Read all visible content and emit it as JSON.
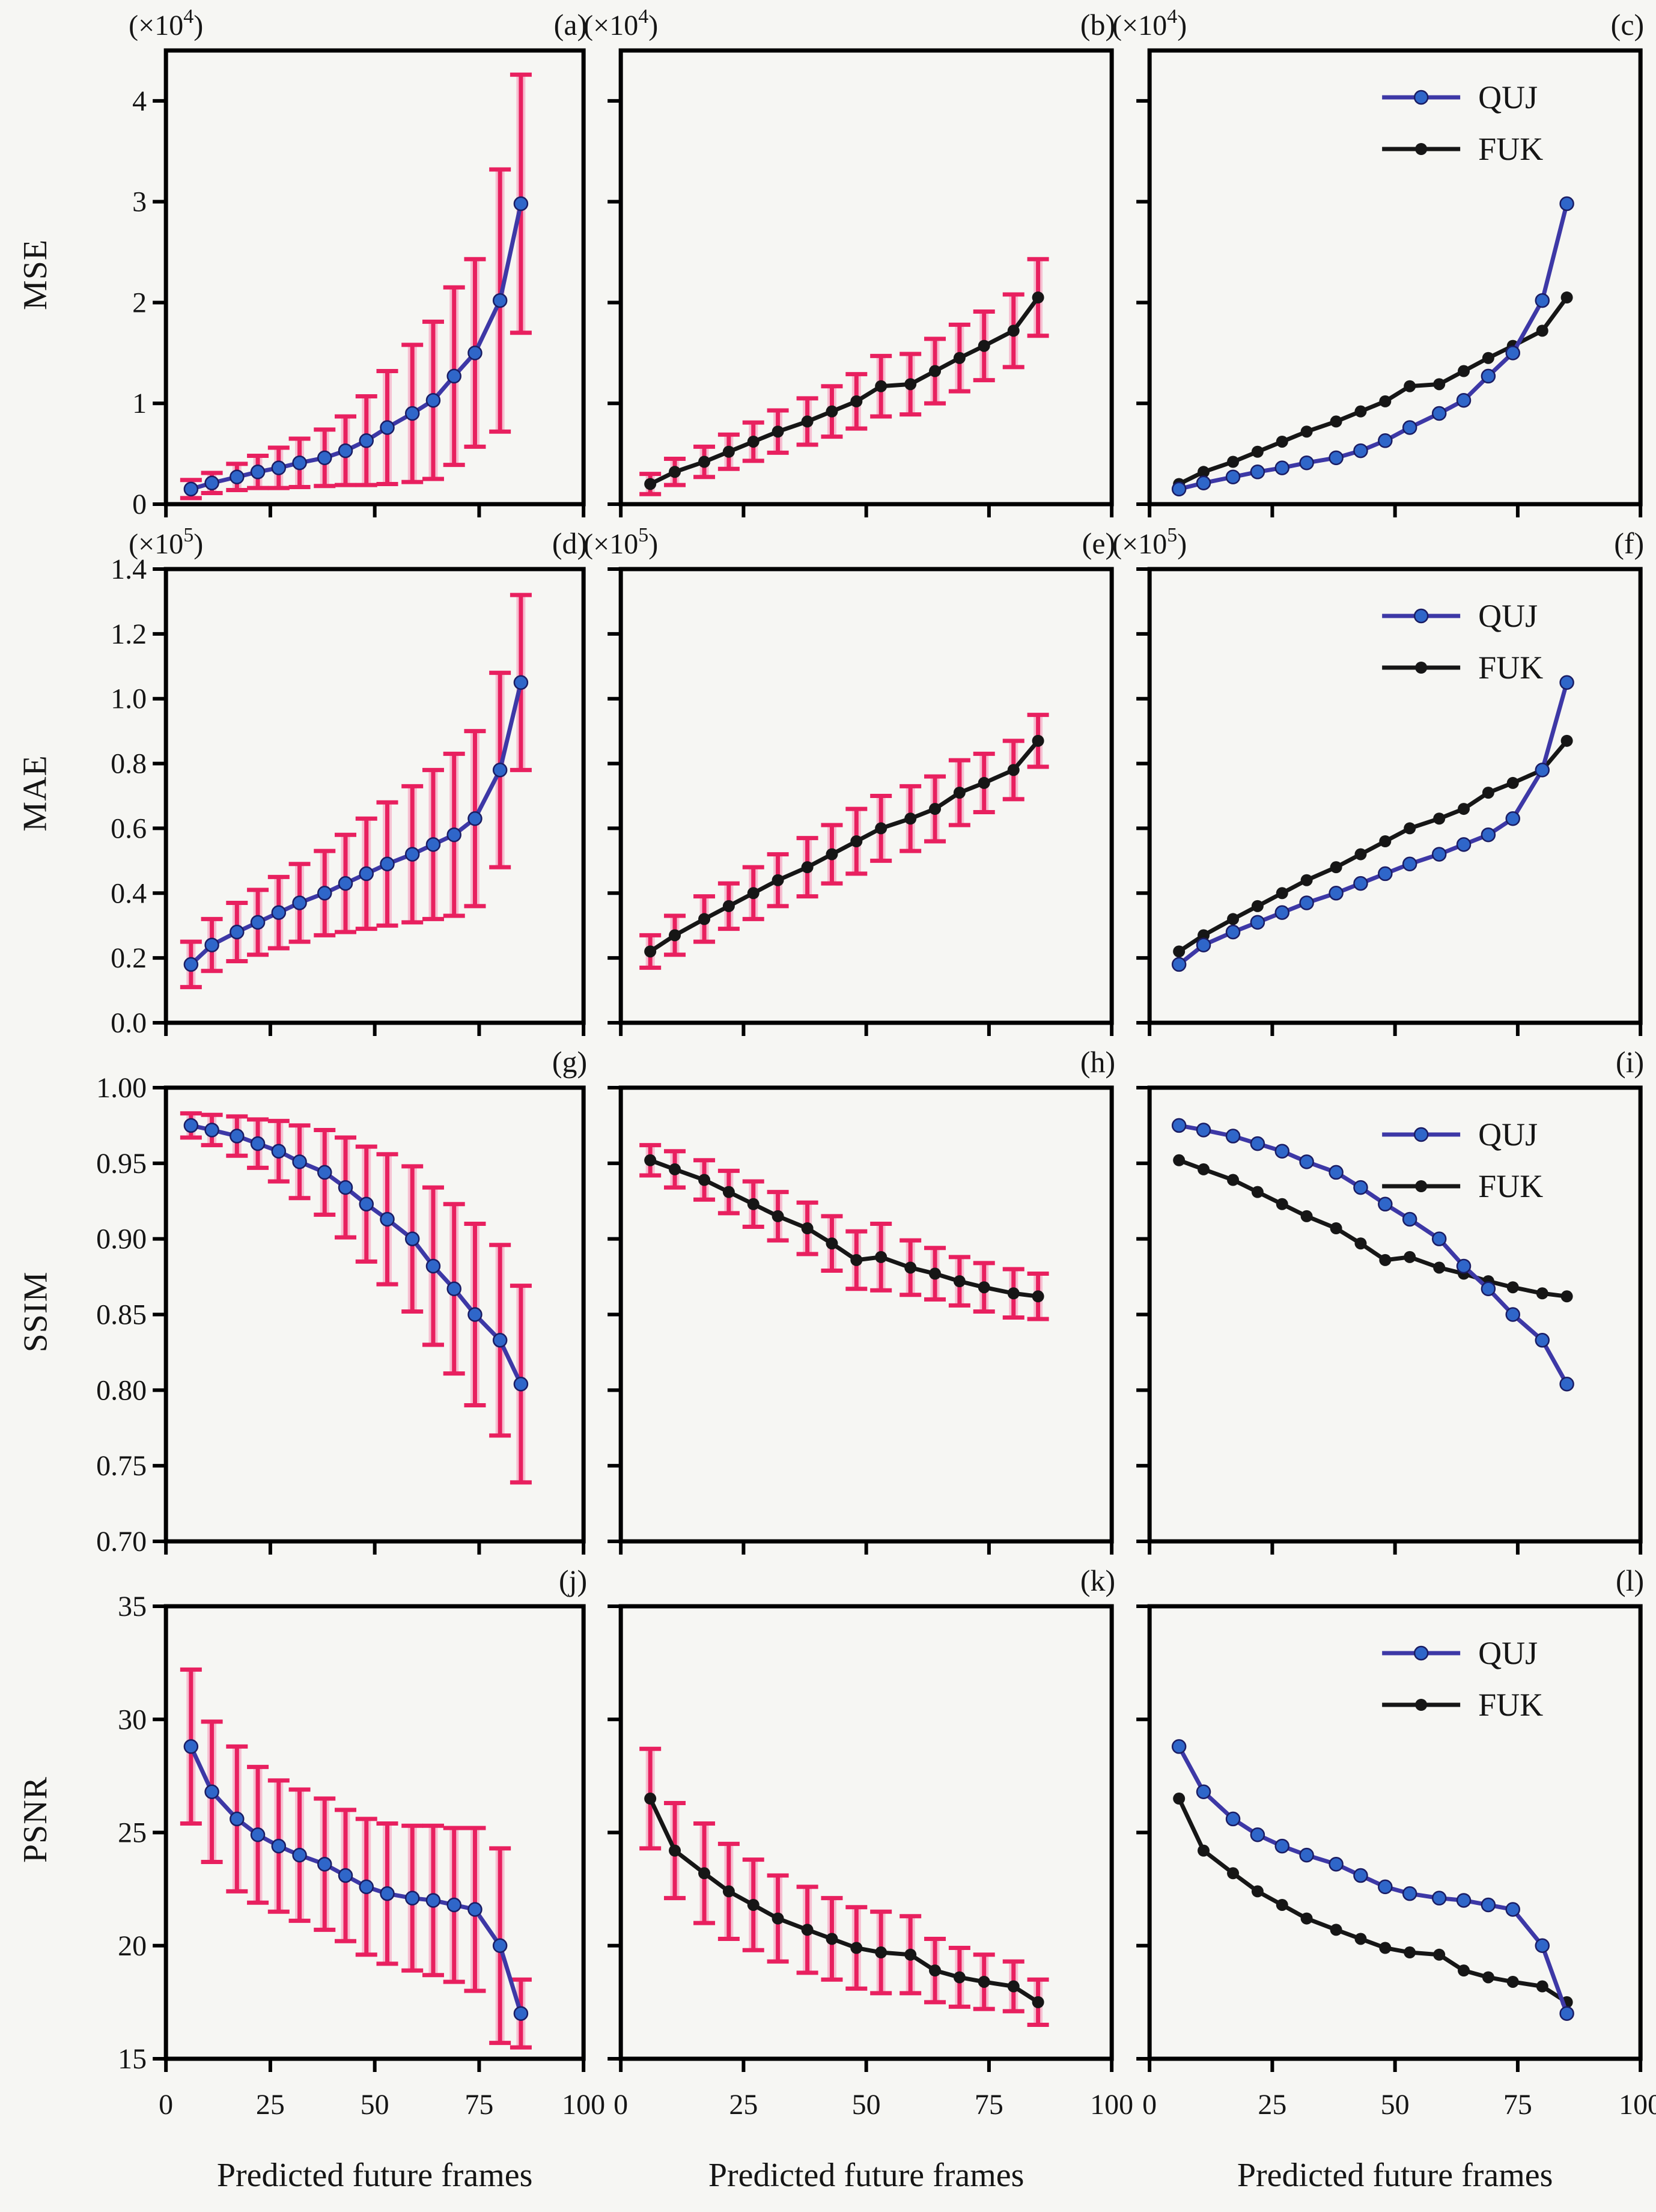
{
  "y_axis_titles": [
    "MSE",
    "MAE",
    "SSIM",
    "PSNR"
  ],
  "x_axis_title": "Predicted future frames",
  "legend_entries": [
    "QUJ",
    "FUK"
  ],
  "colors": {
    "page_background": "#f6f6f3",
    "frame": "#000000",
    "text": "#151515",
    "quj_line": "#3d38a6",
    "quj_fill": "#2f66c9",
    "fuk_line": "#161616",
    "fuk_fill": "#161616",
    "error": "#e8205f",
    "error_halo": "#f7b2c9"
  },
  "chart_data": {
    "type": "line",
    "x": [
      6,
      11,
      17,
      22,
      27,
      32,
      38,
      43,
      48,
      53,
      59,
      64,
      69,
      74,
      80,
      85
    ],
    "xlim": [
      0,
      100
    ],
    "xticks": [
      0,
      25,
      50,
      75,
      100
    ],
    "x_axis_title": "Predicted future frames",
    "grid": false,
    "legend_position": "top-right",
    "series_bank": {
      "mse_quj": {
        "name": "QUJ",
        "color": "quj",
        "values": [
          0.15,
          0.21,
          0.27,
          0.32,
          0.36,
          0.41,
          0.46,
          0.53,
          0.63,
          0.76,
          0.9,
          1.03,
          1.27,
          1.5,
          2.02,
          2.98
        ],
        "errors": [
          0.09,
          0.1,
          0.13,
          0.16,
          0.2,
          0.24,
          0.28,
          0.34,
          0.44,
          0.56,
          0.68,
          0.78,
          0.88,
          0.93,
          1.3,
          1.28
        ]
      },
      "mse_fuk": {
        "name": "FUK",
        "color": "fuk",
        "values": [
          0.2,
          0.32,
          0.42,
          0.52,
          0.62,
          0.72,
          0.82,
          0.92,
          1.02,
          1.17,
          1.19,
          1.32,
          1.45,
          1.57,
          1.72,
          2.05
        ],
        "errors": [
          0.1,
          0.13,
          0.15,
          0.17,
          0.19,
          0.21,
          0.23,
          0.25,
          0.27,
          0.3,
          0.3,
          0.32,
          0.33,
          0.34,
          0.36,
          0.38
        ]
      },
      "mae_quj": {
        "name": "QUJ",
        "color": "quj",
        "values": [
          0.18,
          0.24,
          0.28,
          0.31,
          0.34,
          0.37,
          0.4,
          0.43,
          0.46,
          0.49,
          0.52,
          0.55,
          0.58,
          0.63,
          0.78,
          1.05
        ],
        "errors": [
          0.07,
          0.08,
          0.09,
          0.1,
          0.11,
          0.12,
          0.13,
          0.15,
          0.17,
          0.19,
          0.21,
          0.23,
          0.25,
          0.27,
          0.3,
          0.27
        ]
      },
      "mae_fuk": {
        "name": "FUK",
        "color": "fuk",
        "values": [
          0.22,
          0.27,
          0.32,
          0.36,
          0.4,
          0.44,
          0.48,
          0.52,
          0.56,
          0.6,
          0.63,
          0.66,
          0.71,
          0.74,
          0.78,
          0.87
        ],
        "errors": [
          0.05,
          0.06,
          0.07,
          0.07,
          0.08,
          0.08,
          0.09,
          0.09,
          0.1,
          0.1,
          0.1,
          0.1,
          0.1,
          0.09,
          0.09,
          0.08
        ]
      },
      "ssim_quj": {
        "name": "QUJ",
        "color": "quj",
        "values": [
          0.975,
          0.972,
          0.968,
          0.963,
          0.958,
          0.951,
          0.944,
          0.934,
          0.923,
          0.913,
          0.9,
          0.882,
          0.867,
          0.85,
          0.833,
          0.804
        ],
        "errors": [
          0.008,
          0.01,
          0.013,
          0.016,
          0.02,
          0.024,
          0.028,
          0.033,
          0.038,
          0.043,
          0.048,
          0.052,
          0.056,
          0.06,
          0.063,
          0.065
        ]
      },
      "ssim_fuk": {
        "name": "FUK",
        "color": "fuk",
        "values": [
          0.952,
          0.946,
          0.939,
          0.931,
          0.923,
          0.915,
          0.907,
          0.897,
          0.886,
          0.888,
          0.881,
          0.877,
          0.872,
          0.868,
          0.864,
          0.862
        ],
        "errors": [
          0.01,
          0.012,
          0.013,
          0.014,
          0.015,
          0.016,
          0.017,
          0.018,
          0.019,
          0.022,
          0.018,
          0.017,
          0.016,
          0.016,
          0.016,
          0.015
        ]
      },
      "psnr_quj": {
        "name": "QUJ",
        "color": "quj",
        "values": [
          28.8,
          26.8,
          25.6,
          24.9,
          24.4,
          24.0,
          23.6,
          23.1,
          22.6,
          22.3,
          22.1,
          22.0,
          21.8,
          21.6,
          20.0,
          17.0
        ],
        "errors": [
          3.4,
          3.1,
          3.2,
          3.0,
          2.9,
          2.9,
          2.9,
          2.9,
          3.0,
          3.1,
          3.2,
          3.3,
          3.4,
          3.6,
          4.3,
          1.5
        ]
      },
      "psnr_fuk": {
        "name": "FUK",
        "color": "fuk",
        "values": [
          26.5,
          24.2,
          23.2,
          22.4,
          21.8,
          21.2,
          20.7,
          20.3,
          19.9,
          19.7,
          19.6,
          18.9,
          18.6,
          18.4,
          18.2,
          17.5
        ],
        "errors": [
          2.2,
          2.1,
          2.2,
          2.1,
          2.0,
          1.9,
          1.9,
          1.8,
          1.8,
          1.8,
          1.7,
          1.4,
          1.3,
          1.2,
          1.1,
          1.0
        ]
      }
    },
    "panels": [
      {
        "id": "a",
        "label": "(a)",
        "row": 0,
        "col": 0,
        "metric": "MSE",
        "unit": {
          "prefix": "(×10",
          "exponent": "4",
          "suffix": ")"
        },
        "ylim": [
          0,
          4.5
        ],
        "yticks": [
          0,
          1,
          2,
          3,
          4
        ],
        "ydecimals": 0,
        "series": [
          "mse_quj"
        ],
        "show_errors": true,
        "legend": false
      },
      {
        "id": "b",
        "label": "(b)",
        "row": 0,
        "col": 1,
        "metric": "MSE",
        "unit": {
          "prefix": "(×10",
          "exponent": "4",
          "suffix": ")"
        },
        "ylim": [
          0,
          4.5
        ],
        "yticks": [
          0,
          1,
          2,
          3,
          4
        ],
        "ydecimals": 0,
        "series": [
          "mse_fuk"
        ],
        "show_errors": true,
        "legend": false
      },
      {
        "id": "c",
        "label": "(c)",
        "row": 0,
        "col": 2,
        "metric": "MSE",
        "unit": {
          "prefix": "(×10",
          "exponent": "4",
          "suffix": ")"
        },
        "ylim": [
          0,
          4.5
        ],
        "yticks": [
          0,
          1,
          2,
          3,
          4
        ],
        "ydecimals": 0,
        "series": [
          "mse_quj",
          "mse_fuk"
        ],
        "show_errors": false,
        "legend": true
      },
      {
        "id": "d",
        "label": "(d)",
        "row": 1,
        "col": 0,
        "metric": "MAE",
        "unit": {
          "prefix": "(×10",
          "exponent": "5",
          "suffix": ")"
        },
        "ylim": [
          0,
          1.4
        ],
        "yticks": [
          0,
          0.2,
          0.4,
          0.6,
          0.8,
          1.0,
          1.2,
          1.4
        ],
        "ydecimals": 1,
        "series": [
          "mae_quj"
        ],
        "show_errors": true,
        "legend": false
      },
      {
        "id": "e",
        "label": "(e)",
        "row": 1,
        "col": 1,
        "metric": "MAE",
        "unit": {
          "prefix": "(×10",
          "exponent": "5",
          "suffix": ")"
        },
        "ylim": [
          0,
          1.4
        ],
        "yticks": [
          0,
          0.2,
          0.4,
          0.6,
          0.8,
          1.0,
          1.2,
          1.4
        ],
        "ydecimals": 1,
        "series": [
          "mae_fuk"
        ],
        "show_errors": true,
        "legend": false
      },
      {
        "id": "f",
        "label": "(f)",
        "row": 1,
        "col": 2,
        "metric": "MAE",
        "unit": {
          "prefix": "(×10",
          "exponent": "5",
          "suffix": ")"
        },
        "ylim": [
          0,
          1.4
        ],
        "yticks": [
          0,
          0.2,
          0.4,
          0.6,
          0.8,
          1.0,
          1.2,
          1.4
        ],
        "ydecimals": 1,
        "series": [
          "mae_quj",
          "mae_fuk"
        ],
        "show_errors": false,
        "legend": true
      },
      {
        "id": "g",
        "label": "(g)",
        "row": 2,
        "col": 0,
        "metric": "SSIM",
        "unit": null,
        "ylim": [
          0.7,
          1.0
        ],
        "yticks": [
          0.7,
          0.75,
          0.8,
          0.85,
          0.9,
          0.95,
          1.0
        ],
        "ydecimals": 2,
        "series": [
          "ssim_quj"
        ],
        "show_errors": true,
        "legend": false
      },
      {
        "id": "h",
        "label": "(h)",
        "row": 2,
        "col": 1,
        "metric": "SSIM",
        "unit": null,
        "ylim": [
          0.7,
          1.0
        ],
        "yticks": [
          0.7,
          0.75,
          0.8,
          0.85,
          0.9,
          0.95,
          1.0
        ],
        "ydecimals": 2,
        "series": [
          "ssim_fuk"
        ],
        "show_errors": true,
        "legend": false
      },
      {
        "id": "i",
        "label": "(i)",
        "row": 2,
        "col": 2,
        "metric": "SSIM",
        "unit": null,
        "ylim": [
          0.7,
          1.0
        ],
        "yticks": [
          0.7,
          0.75,
          0.8,
          0.85,
          0.9,
          0.95,
          1.0
        ],
        "ydecimals": 2,
        "series": [
          "ssim_quj",
          "ssim_fuk"
        ],
        "show_errors": false,
        "legend": true
      },
      {
        "id": "j",
        "label": "(j)",
        "row": 3,
        "col": 0,
        "metric": "PSNR",
        "unit": null,
        "ylim": [
          15,
          35
        ],
        "yticks": [
          15,
          20,
          25,
          30,
          35
        ],
        "ydecimals": 0,
        "series": [
          "psnr_quj"
        ],
        "show_errors": true,
        "legend": false
      },
      {
        "id": "k",
        "label": "(k)",
        "row": 3,
        "col": 1,
        "metric": "PSNR",
        "unit": null,
        "ylim": [
          15,
          35
        ],
        "yticks": [
          15,
          20,
          25,
          30,
          35
        ],
        "ydecimals": 0,
        "series": [
          "psnr_fuk"
        ],
        "show_errors": true,
        "legend": false
      },
      {
        "id": "l",
        "label": "(l)",
        "row": 3,
        "col": 2,
        "metric": "PSNR",
        "unit": null,
        "ylim": [
          15,
          35
        ],
        "yticks": [
          15,
          20,
          25,
          30,
          35
        ],
        "ydecimals": 0,
        "series": [
          "psnr_quj",
          "psnr_fuk"
        ],
        "show_errors": false,
        "legend": true
      }
    ]
  }
}
